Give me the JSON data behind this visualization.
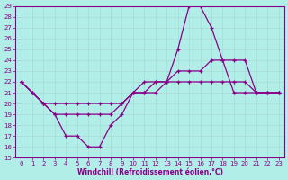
{
  "xlabel": "Windchill (Refroidissement éolien,°C)",
  "background_color": "#b2eee8",
  "grid_color": "#c8e8e4",
  "line_color": "#880088",
  "xlim": [
    -0.5,
    23.5
  ],
  "ylim": [
    15,
    29
  ],
  "yticks": [
    15,
    16,
    17,
    18,
    19,
    20,
    21,
    22,
    23,
    24,
    25,
    26,
    27,
    28,
    29
  ],
  "xticks": [
    0,
    1,
    2,
    3,
    4,
    5,
    6,
    7,
    8,
    9,
    10,
    11,
    12,
    13,
    14,
    15,
    16,
    17,
    18,
    19,
    20,
    21,
    22,
    23
  ],
  "line1_x": [
    0,
    1,
    2,
    3,
    4,
    5,
    6,
    7,
    8,
    9,
    10,
    11,
    12,
    13,
    14,
    15,
    16,
    17,
    18,
    19,
    20,
    21,
    22,
    23
  ],
  "line1_y": [
    22,
    21,
    20,
    19,
    17,
    17,
    16,
    16,
    18,
    19,
    21,
    21,
    22,
    22,
    25,
    29,
    29,
    27,
    24,
    21,
    21,
    21,
    21,
    21
  ],
  "line2_x": [
    0,
    1,
    2,
    3,
    4,
    5,
    6,
    7,
    8,
    9,
    10,
    11,
    12,
    13,
    14,
    15,
    16,
    17,
    18,
    19,
    20,
    21,
    22,
    23
  ],
  "line2_y": [
    22,
    21,
    20,
    20,
    20,
    20,
    20,
    20,
    20,
    20,
    21,
    22,
    22,
    22,
    23,
    23,
    23,
    24,
    24,
    24,
    24,
    21,
    21,
    21
  ],
  "line3_x": [
    0,
    1,
    2,
    3,
    4,
    5,
    6,
    7,
    8,
    9,
    10,
    11,
    12,
    13,
    14,
    15,
    16,
    17,
    18,
    19,
    20,
    21,
    22,
    23
  ],
  "line3_y": [
    22,
    21,
    20,
    19,
    19,
    19,
    19,
    19,
    19,
    20,
    21,
    21,
    21,
    22,
    22,
    22,
    22,
    22,
    22,
    22,
    22,
    21,
    21,
    21
  ]
}
